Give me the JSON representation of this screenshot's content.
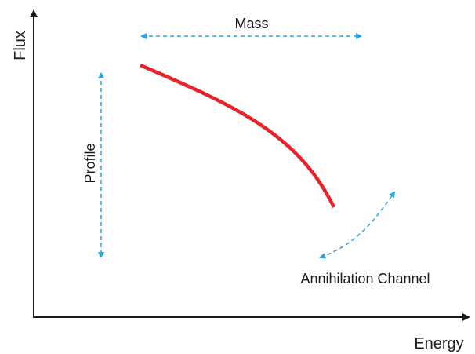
{
  "axes": {
    "x_label": "Energy",
    "y_label": "Flux"
  },
  "annotations": {
    "mass_label": "Mass",
    "profile_label": "Profile",
    "channel_label": "Annihilation Channel"
  },
  "colors": {
    "axis": "#1a1a1a",
    "curve": "#e8232a",
    "arrow": "#2aa3e0"
  }
}
